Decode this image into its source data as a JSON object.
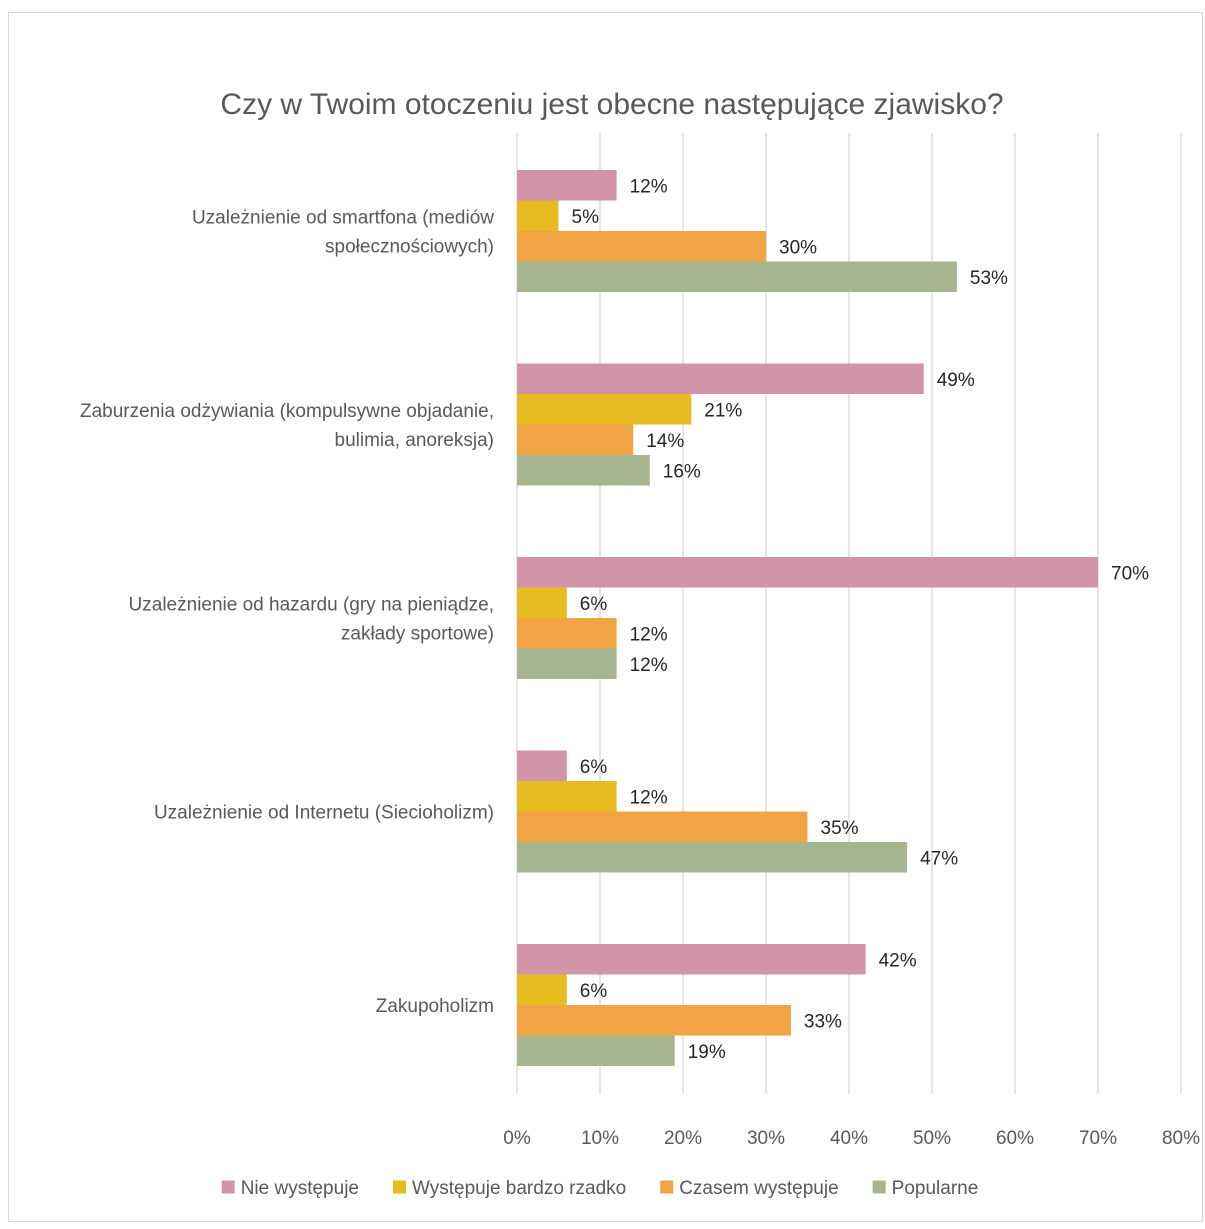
{
  "chart_data": {
    "type": "bar",
    "orientation": "horizontal",
    "title": "Czy w Twoim otoczeniu jest obecne następujące zjawisko?",
    "categories": [
      [
        "Uzależnienie od smartfona (mediów",
        "społecznościowych)"
      ],
      [
        "Zaburzenia odżywiania (kompulsywne objadanie,",
        "bulimia, anoreksja)"
      ],
      [
        "Uzależnienie od hazardu (gry na pieniądze,",
        "zakłady sportowe)"
      ],
      [
        "Uzależnienie od Internetu (Siecioholizm)"
      ],
      [
        "Zakupoholizm"
      ]
    ],
    "series": [
      {
        "name": "Nie występuje",
        "color": "#d194a8",
        "values": [
          12,
          49,
          70,
          6,
          42
        ]
      },
      {
        "name": "Występuje bardzo rzadko",
        "color": "#e6bc21",
        "values": [
          5,
          21,
          6,
          12,
          6
        ]
      },
      {
        "name": "Czasem występuje",
        "color": "#f2a444",
        "values": [
          30,
          14,
          12,
          35,
          33
        ]
      },
      {
        "name": "Popularne",
        "color": "#a6b58f",
        "values": [
          53,
          16,
          12,
          47,
          19
        ]
      }
    ],
    "xlim": [
      0,
      80
    ],
    "xticks": [
      0,
      10,
      20,
      30,
      40,
      50,
      60,
      70,
      80
    ],
    "tick_suffix": "%",
    "grid": true,
    "legend_position": "bottom"
  }
}
